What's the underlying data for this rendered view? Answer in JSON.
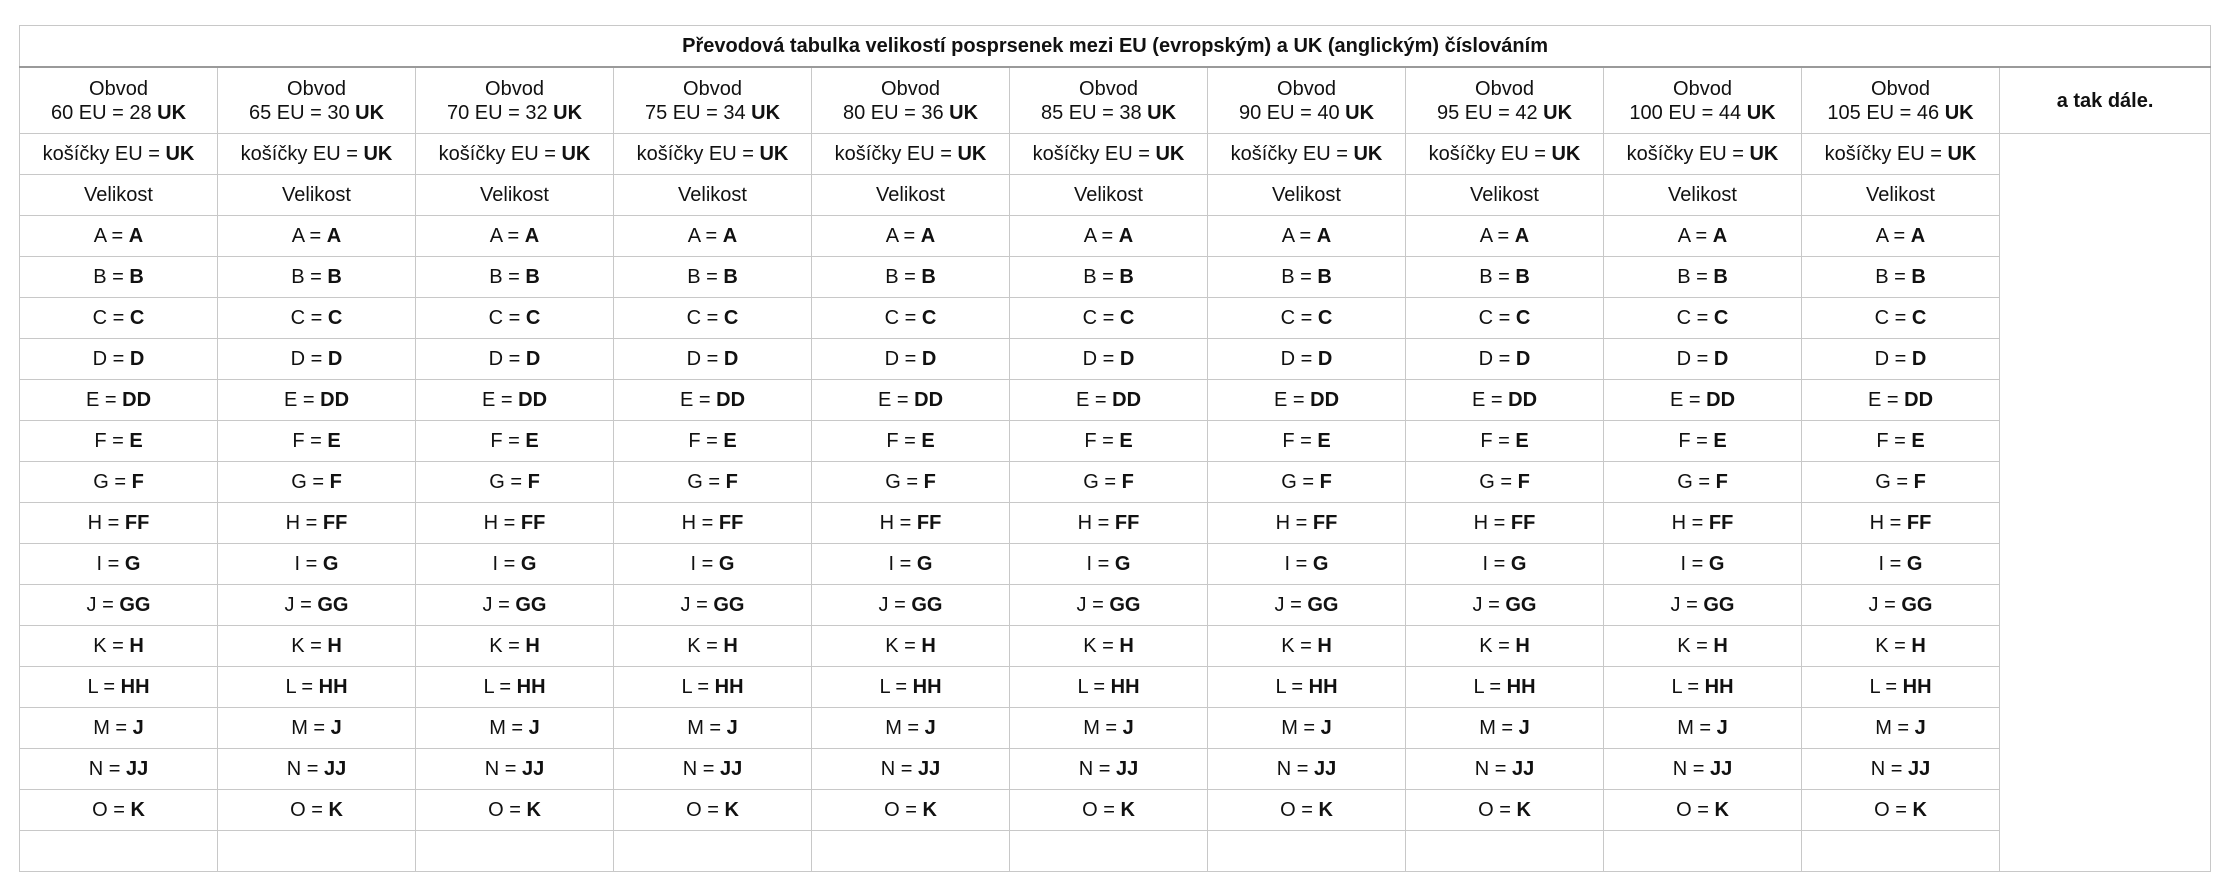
{
  "table": {
    "title": "Převodová tabulka velikostí posprsenek mezi EU (evropským) a UK (anglickým) číslováním",
    "columns": [
      {
        "obvod": "Obvod",
        "size_eu": "60 EU = 28 ",
        "size_uk": "UK"
      },
      {
        "obvod": "Obvod",
        "size_eu": "65 EU = 30 ",
        "size_uk": "UK"
      },
      {
        "obvod": "Obvod",
        "size_eu": "70 EU = 32 ",
        "size_uk": "UK"
      },
      {
        "obvod": "Obvod",
        "size_eu": "75 EU = 34 ",
        "size_uk": "UK"
      },
      {
        "obvod": "Obvod",
        "size_eu": "80 EU = 36 ",
        "size_uk": "UK"
      },
      {
        "obvod": "Obvod",
        "size_eu": "85 EU = 38 ",
        "size_uk": "UK"
      },
      {
        "obvod": "Obvod",
        "size_eu": "90 EU = 40 ",
        "size_uk": "UK"
      },
      {
        "obvod": "Obvod",
        "size_eu": "95 EU = 42 ",
        "size_uk": "UK"
      },
      {
        "obvod": "Obvod",
        "size_eu": "100 EU = 44 ",
        "size_uk": "UK"
      },
      {
        "obvod": "Obvod",
        "size_eu": "105 EU = 46 ",
        "size_uk": "UK"
      }
    ],
    "etc_label": "a tak dále.",
    "cups_label_eu": "košíčky EU = ",
    "cups_label_uk": "UK",
    "size_label": "Velikost",
    "conversions": [
      {
        "eu": "A",
        "uk": "A"
      },
      {
        "eu": "B",
        "uk": "B"
      },
      {
        "eu": "C",
        "uk": "C"
      },
      {
        "eu": "D",
        "uk": "D"
      },
      {
        "eu": "E",
        "uk": "DD"
      },
      {
        "eu": "F",
        "uk": "E"
      },
      {
        "eu": "G",
        "uk": "F"
      },
      {
        "eu": "H",
        "uk": "FF"
      },
      {
        "eu": "I",
        "uk": "G"
      },
      {
        "eu": "J",
        "uk": "GG"
      },
      {
        "eu": "K",
        "uk": "H"
      },
      {
        "eu": "L",
        "uk": "HH"
      },
      {
        "eu": "M",
        "uk": "J"
      },
      {
        "eu": "N",
        "uk": "JJ"
      },
      {
        "eu": "O",
        "uk": "K"
      }
    ],
    "equals": " = "
  }
}
